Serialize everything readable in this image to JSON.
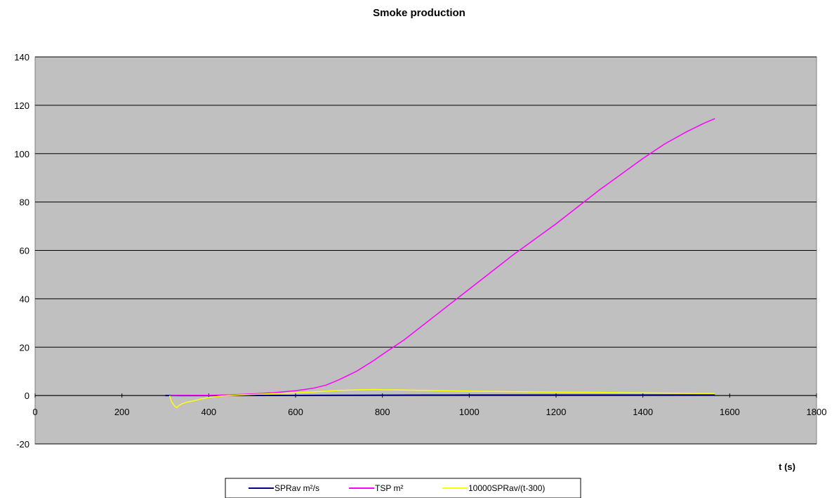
{
  "chart_data": {
    "type": "line",
    "title": "Smoke production",
    "xlabel": "t (s)",
    "ylabel": "",
    "xlim": [
      0,
      1800
    ],
    "ylim": [
      -20,
      140
    ],
    "xticks": [
      0,
      200,
      400,
      600,
      800,
      1000,
      1200,
      1400,
      1600,
      1800
    ],
    "yticks": [
      -20,
      0,
      20,
      40,
      60,
      80,
      100,
      120,
      140
    ],
    "grid": "horizontal",
    "plot_background": "#c0c0c0",
    "legend_position": "bottom",
    "series": [
      {
        "name": "SPRav m²/s",
        "color": "#000080",
        "points": [
          [
            300,
            0
          ],
          [
            400,
            0.01
          ],
          [
            500,
            0.03
          ],
          [
            600,
            0.05
          ],
          [
            700,
            0.1
          ],
          [
            800,
            0.15
          ],
          [
            900,
            0.18
          ],
          [
            1000,
            0.2
          ],
          [
            1100,
            0.2
          ],
          [
            1200,
            0.2
          ],
          [
            1300,
            0.2
          ],
          [
            1400,
            0.2
          ],
          [
            1500,
            0.2
          ],
          [
            1566,
            0.2
          ]
        ]
      },
      {
        "name": "TSP m²",
        "color": "#ff00ff",
        "points": [
          [
            312,
            0
          ],
          [
            400,
            0.1
          ],
          [
            450,
            0.3
          ],
          [
            500,
            0.7
          ],
          [
            550,
            1.2
          ],
          [
            600,
            2
          ],
          [
            640,
            3
          ],
          [
            670,
            4.3
          ],
          [
            700,
            6.5
          ],
          [
            740,
            10
          ],
          [
            780,
            14.5
          ],
          [
            800,
            17
          ],
          [
            850,
            23
          ],
          [
            900,
            30
          ],
          [
            950,
            37
          ],
          [
            1000,
            44
          ],
          [
            1050,
            51
          ],
          [
            1100,
            58
          ],
          [
            1150,
            64.5
          ],
          [
            1200,
            71
          ],
          [
            1250,
            78
          ],
          [
            1300,
            85
          ],
          [
            1350,
            91.5
          ],
          [
            1400,
            98
          ],
          [
            1450,
            104
          ],
          [
            1500,
            109
          ],
          [
            1540,
            112.5
          ],
          [
            1566,
            114.5
          ]
        ]
      },
      {
        "name": "10000SPRav/(t-300)",
        "color": "#ffff00",
        "points": [
          [
            310,
            0
          ],
          [
            314,
            -2.5
          ],
          [
            318,
            -3.5
          ],
          [
            322,
            -4.5
          ],
          [
            326,
            -5
          ],
          [
            332,
            -4
          ],
          [
            340,
            -3.3
          ],
          [
            350,
            -2.7
          ],
          [
            365,
            -2.2
          ],
          [
            380,
            -1.5
          ],
          [
            400,
            -0.8
          ],
          [
            430,
            -0.2
          ],
          [
            470,
            0.2
          ],
          [
            520,
            0.6
          ],
          [
            580,
            1
          ],
          [
            640,
            1.5
          ],
          [
            700,
            2.1
          ],
          [
            750,
            2.4
          ],
          [
            780,
            2.5
          ],
          [
            800,
            2.4
          ],
          [
            850,
            2.3
          ],
          [
            900,
            2.1
          ],
          [
            1000,
            1.8
          ],
          [
            1100,
            1.6
          ],
          [
            1200,
            1.4
          ],
          [
            1300,
            1.3
          ],
          [
            1400,
            1.1
          ],
          [
            1500,
            0.9
          ],
          [
            1566,
            0.8
          ]
        ]
      }
    ]
  }
}
